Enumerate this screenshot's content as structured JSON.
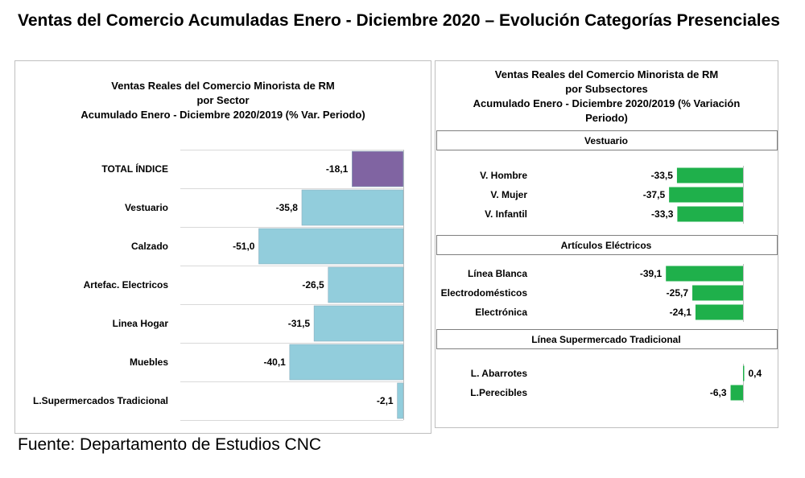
{
  "title": "Ventas del Comercio Acumuladas Enero - Diciembre 2020 – Evolución Categorías Presenciales",
  "source": "Fuente: Departamento de Estudios CNC",
  "colors": {
    "total": "#8064a2",
    "sector": "#92cddc",
    "subsector": "#1fb04b"
  },
  "chart_data": [
    {
      "type": "bar",
      "orientation": "horizontal",
      "title_lines": [
        "Ventas Reales del Comercio Minorista de RM",
        "por Sector",
        "Acumulado Enero - Diciembre 2020/2019 (% Var. Periodo)"
      ],
      "categories": [
        "TOTAL ÍNDICE",
        "Vestuario",
        "Calzado",
        "Artefac. Electricos",
        "Linea Hogar",
        "Muebles",
        "L.Supermercados Tradicional"
      ],
      "values": [
        -18.1,
        -35.8,
        -51.0,
        -26.5,
        -31.5,
        -40.1,
        -2.1
      ],
      "value_labels": [
        "-18,1",
        "-35,8",
        "-51,0",
        "-26,5",
        "-31,5",
        "-40,1",
        "-2,1"
      ],
      "highlight_index": 0
    },
    {
      "type": "bar",
      "orientation": "horizontal",
      "title_lines": [
        "Ventas Reales del Comercio Minorista de RM",
        "por Subsectores",
        "Acumulado Enero - Diciembre 2020/2019 (% Variación",
        "Periodo)"
      ],
      "groups": [
        {
          "name": "Vestuario",
          "categories": [
            "V. Hombre",
            "V. Mujer",
            "V. Infantil"
          ],
          "values": [
            -33.5,
            -37.5,
            -33.3
          ],
          "value_labels": [
            "-33,5",
            "-37,5",
            "-33,3"
          ]
        },
        {
          "name": "Artículos Eléctricos",
          "categories": [
            "Línea Blanca",
            "Electrodomésticos",
            "Electrónica"
          ],
          "values": [
            -39.1,
            -25.7,
            -24.1
          ],
          "value_labels": [
            "-39,1",
            "-25,7",
            "-24,1"
          ]
        },
        {
          "name": "Línea  Supermercado Tradicional",
          "categories": [
            "L. Abarrotes",
            "L.Perecibles"
          ],
          "values": [
            0.4,
            -6.3
          ],
          "value_labels": [
            "0,4",
            "-6,3"
          ]
        }
      ]
    }
  ]
}
